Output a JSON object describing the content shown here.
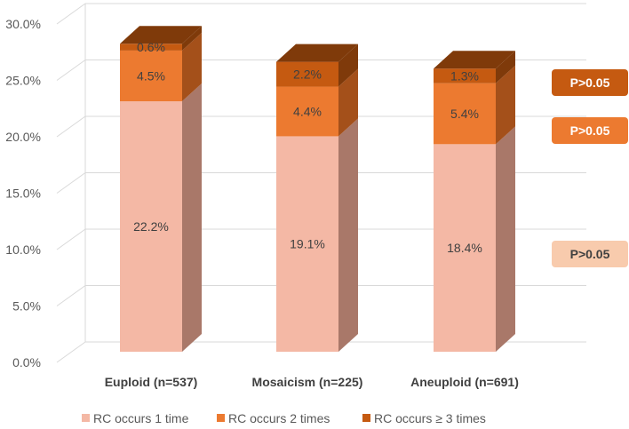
{
  "chart_data": {
    "type": "bar",
    "stacked": true,
    "style": "3d",
    "categories": [
      "Euploid (n=537)",
      "Mosaicism (n=225)",
      "Aneuploid (n=691)"
    ],
    "series": [
      {
        "name": "RC occurs 1 time",
        "values": [
          22.2,
          19.1,
          18.4
        ],
        "labels": [
          "22.2%",
          "19.1%",
          "18.4%"
        ],
        "color": "#F4B8A5",
        "side_color": "#A97869"
      },
      {
        "name": "RC occurs 2 times",
        "values": [
          4.5,
          4.4,
          5.4
        ],
        "labels": [
          "4.5%",
          "4.4%",
          "5.4%"
        ],
        "color": "#EC7A30",
        "side_color": "#A4501A"
      },
      {
        "name": "RC occurs ≥ 3 times",
        "values": [
          0.6,
          2.2,
          1.3
        ],
        "labels": [
          "0.6%",
          "2.2%",
          "1.3%"
        ],
        "color": "#C55A11",
        "side_color": "#7F3A0A"
      }
    ],
    "ylim": [
      0,
      30
    ],
    "yticks": [
      "0.0%",
      "5.0%",
      "10.0%",
      "15.0%",
      "20.0%",
      "25.0%",
      "30.0%"
    ],
    "ytick_values": [
      0,
      5,
      10,
      15,
      20,
      25,
      30
    ],
    "grid": true,
    "legend": "bottom",
    "annotations": [
      {
        "text": "P>0.05",
        "series": 2,
        "color": "#C55A11",
        "text_style": "light"
      },
      {
        "text": "P>0.05",
        "series": 1,
        "color": "#EC7A30",
        "text_style": "light"
      },
      {
        "text": "P>0.05",
        "series": 0,
        "color": "#F8CBAD",
        "text_style": "dark"
      }
    ]
  }
}
